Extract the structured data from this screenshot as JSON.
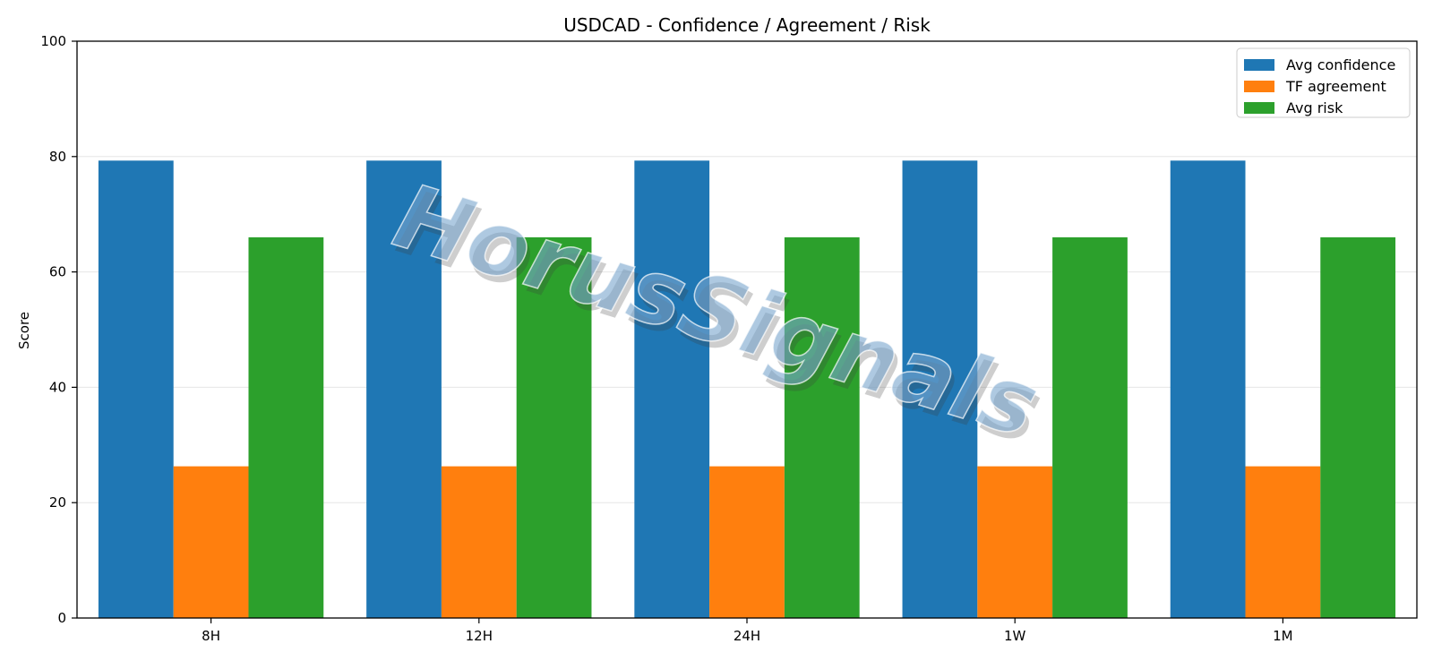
{
  "chart_data": {
    "type": "bar",
    "title": "USDCAD - Confidence / Agreement / Risk",
    "xlabel": "",
    "ylabel": "Score",
    "ylim": [
      0,
      100
    ],
    "yticks": [
      0,
      20,
      40,
      60,
      80,
      100
    ],
    "categories": [
      "8H",
      "12H",
      "24H",
      "1W",
      "1M"
    ],
    "series": [
      {
        "name": "Avg confidence",
        "color": "#1f77b4",
        "values": [
          79.3,
          79.3,
          79.3,
          79.3,
          79.3
        ]
      },
      {
        "name": "TF agreement",
        "color": "#ff7f0e",
        "values": [
          26.3,
          26.3,
          26.3,
          26.3,
          26.3
        ]
      },
      {
        "name": "Avg risk",
        "color": "#2ca02c",
        "values": [
          66.0,
          66.0,
          66.0,
          66.0,
          66.0
        ]
      }
    ],
    "grid": "y",
    "legend_position": "top-right",
    "watermark": "HorusSignals"
  }
}
